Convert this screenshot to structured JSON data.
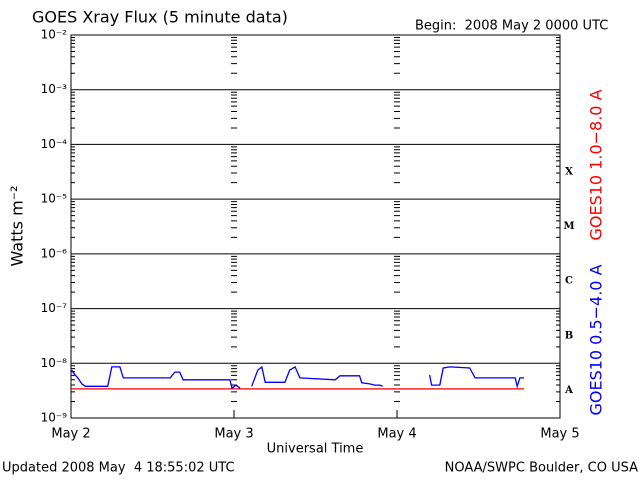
{
  "chart_data": {
    "type": "line",
    "title": "GOES Xray Flux (5 minute data)",
    "subtitle": "Begin:  2008 May 2 0000 UTC",
    "x_label": "Universal Time",
    "y_label": "Watts m⁻²",
    "footer_left": "Updated 2008 May  4 18:55:02 UTC",
    "footer_right": "NOAA/SWPC Boulder, CO USA",
    "flare_classes": [
      "X",
      "M",
      "C",
      "B",
      "A"
    ],
    "log_scale_y": true,
    "grid": true,
    "xlim": [
      0,
      72
    ],
    "xticks": [
      {
        "value": 0,
        "label": "May 2"
      },
      {
        "value": 24,
        "label": "May 3"
      },
      {
        "value": 48,
        "label": "May 4"
      },
      {
        "value": 72,
        "label": "May 5"
      }
    ],
    "ylim": [
      1e-09,
      0.01
    ],
    "yticks": [
      {
        "value": 1e-09,
        "label": "10⁻⁹"
      },
      {
        "value": 1e-08,
        "label": "10⁻⁸"
      },
      {
        "value": 1e-07,
        "label": "10⁻⁷"
      },
      {
        "value": 1e-06,
        "label": "10⁻⁶"
      },
      {
        "value": 1e-05,
        "label": "10⁻⁵"
      },
      {
        "value": 0.0001,
        "label": "10⁻⁴"
      },
      {
        "value": 0.001,
        "label": "10⁻³"
      },
      {
        "value": 0.01,
        "label": "10⁻²"
      }
    ],
    "series": [
      {
        "name": "GOES10 1.0−8.0 A",
        "color": "#ff0000",
        "x": [
          0.1,
          66.7
        ],
        "values": [
          3.4e-09,
          3.4e-09
        ]
      },
      {
        "name": "GOES10 0.5−4.0 A",
        "color": "#0000ff",
        "x": [
          0.1,
          0.6,
          1.0,
          1.6,
          2.1,
          5.4,
          6.0,
          7.2,
          7.7,
          14.6,
          15.3,
          16.0,
          16.5,
          23.4,
          23.7,
          24.3,
          24.9,
          25.5,
          26.6,
          27.5,
          28.1,
          28.6,
          31.5,
          32.2,
          33.0,
          33.7,
          38.9,
          39.6,
          42.5,
          42.8,
          44.0,
          44.7,
          45.5,
          45.9,
          49.0,
          52.8,
          53.1,
          54.3,
          54.8,
          55.8,
          58.7,
          59.5,
          65.4,
          65.7,
          66.1,
          66.7
        ],
        "values": [
          7.5e-09,
          6.1e-09,
          5.4e-09,
          4.2e-09,
          3.8e-09,
          3.8e-09,
          8.6e-09,
          8.6e-09,
          5.4e-09,
          5.4e-09,
          6.9e-09,
          6.9e-09,
          5e-09,
          5e-09,
          3.5e-09,
          4e-09,
          3.5e-09,
          null,
          3.8e-09,
          7.5e-09,
          8.6e-09,
          4.5e-09,
          4.5e-09,
          7.5e-09,
          8.6e-09,
          5.4e-09,
          5e-09,
          5.9e-09,
          5.9e-09,
          4.4e-09,
          4.2e-09,
          4e-09,
          4e-09,
          3.8e-09,
          null,
          6.1e-09,
          4e-09,
          4e-09,
          8.2e-09,
          8.6e-09,
          8.2e-09,
          5.4e-09,
          5.4e-09,
          3.8e-09,
          5.4e-09,
          5.4e-09
        ]
      }
    ]
  }
}
